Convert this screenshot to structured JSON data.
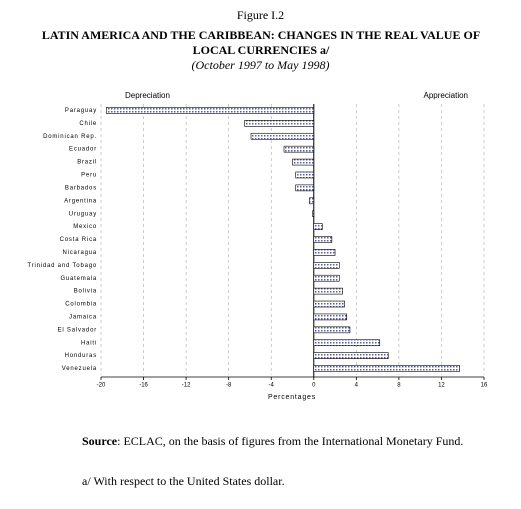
{
  "chart_data": {
    "type": "hbar",
    "figure_label": "Figure I.2",
    "title": "LATIN AMERICA AND THE CARIBBEAN: CHANGES IN THE REAL VALUE OF LOCAL CURRENCIES a/",
    "subtitle": "(October 1997 to May 1998)",
    "left_annotation": "Depreciation",
    "right_annotation": "Appreciation",
    "xlabel": "Percentages",
    "categories": [
      "Paraguay",
      "Chile",
      "Dominican Rep.",
      "Ecuador",
      "Brazil",
      "Peru",
      "Barbados",
      "Argentina",
      "Uruguay",
      "Mexico",
      "Costa Rica",
      "Nicaragua",
      "Trinidad and Tobago",
      "Guatemala",
      "Bolivia",
      "Colombia",
      "Jamaica",
      "El Salvador",
      "Haiti",
      "Honduras",
      "Venezuela"
    ],
    "values": [
      -19.5,
      -6.5,
      -5.9,
      -2.8,
      -2.0,
      -1.7,
      -1.7,
      -0.4,
      -0.1,
      0.8,
      1.7,
      2.0,
      2.4,
      2.4,
      2.7,
      2.9,
      3.1,
      3.4,
      6.2,
      7.0,
      13.7
    ],
    "color": "#5a5f9a",
    "xlim": [
      -20,
      16
    ],
    "xticks": [
      -20,
      -16,
      -12,
      -8,
      -4,
      0,
      4,
      8,
      12,
      16
    ],
    "grid": true
  },
  "footer": {
    "source_label": "Source",
    "source_text": ": ECLAC, on the basis of figures from the International Monetary Fund.",
    "note": "a/ With respect to the United States dollar."
  }
}
